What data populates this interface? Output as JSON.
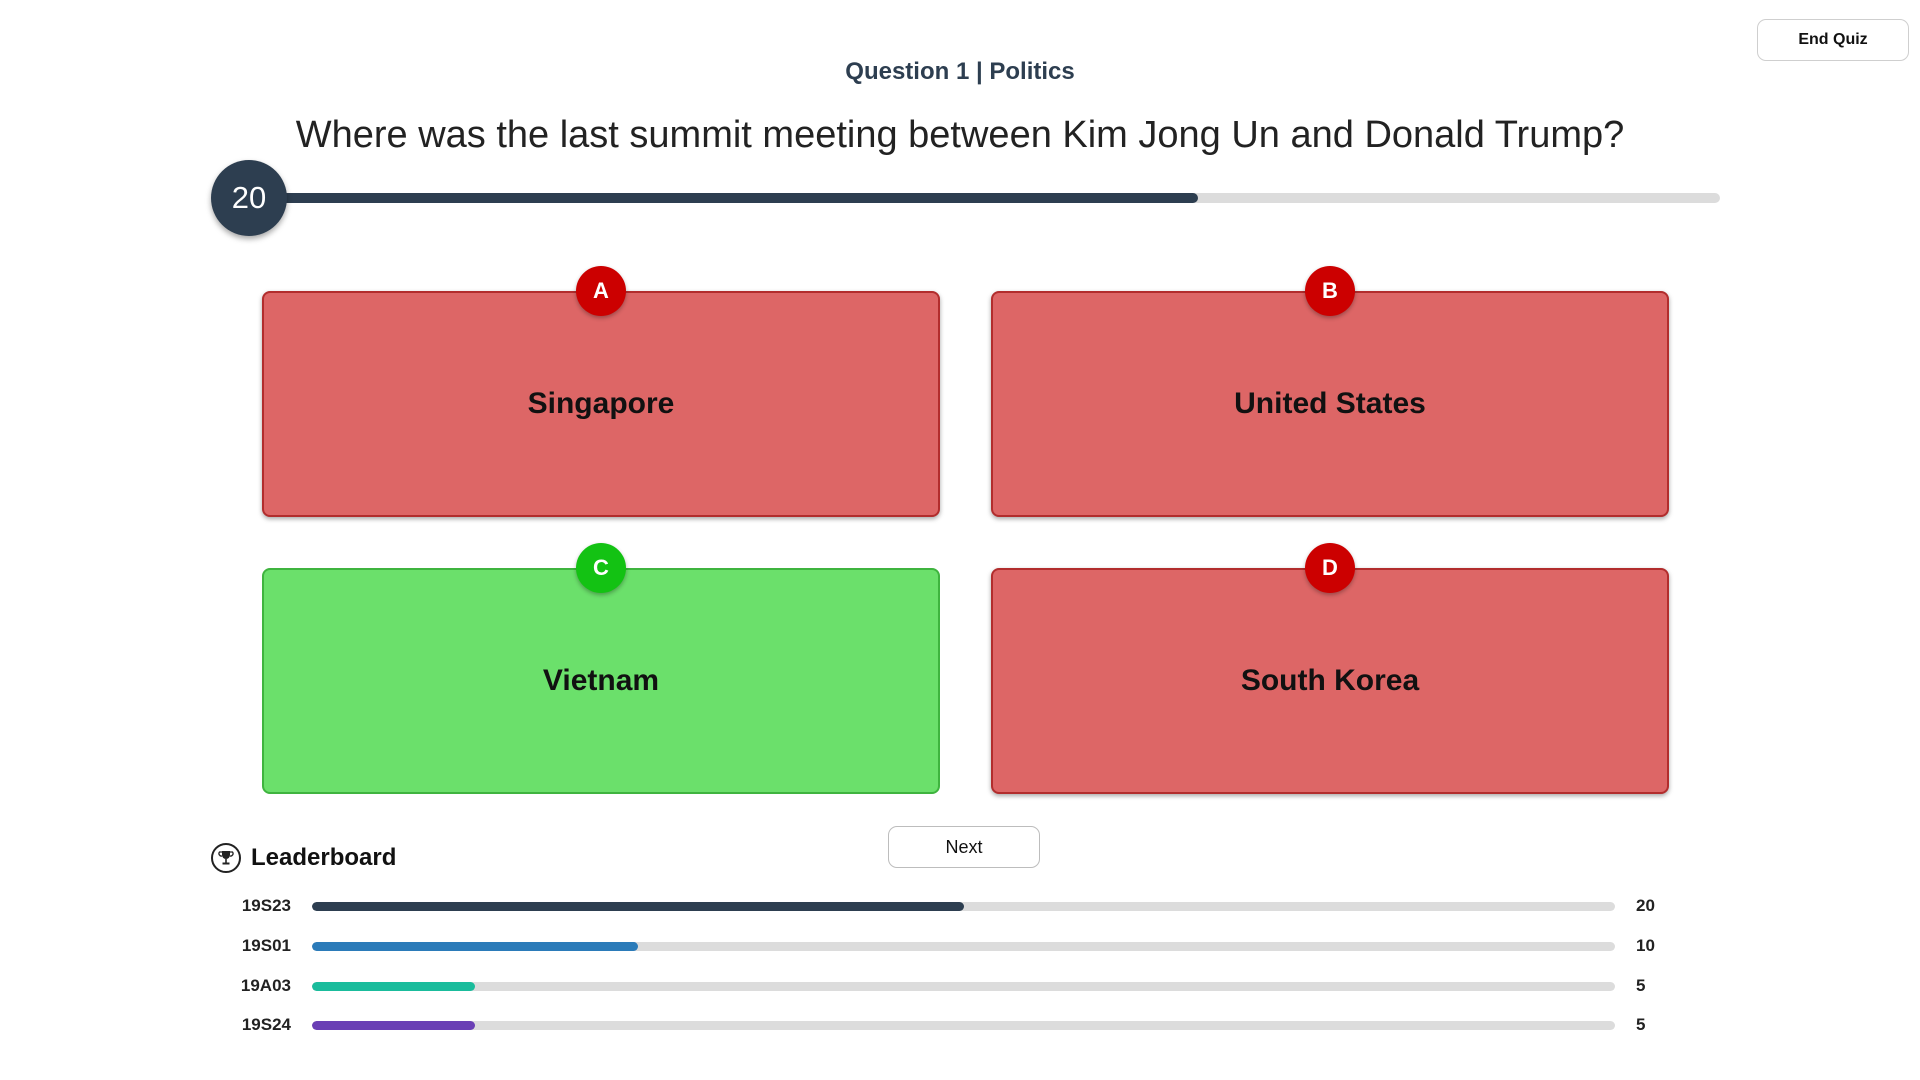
{
  "controls": {
    "end_quiz_label": "End Quiz",
    "next_label": "Next"
  },
  "question": {
    "header": "Question 1 | Politics",
    "text": "Where was the last summit meeting between Kim Jong Un and Donald Trump?"
  },
  "timer": {
    "seconds_left": "20",
    "fraction_remaining": 0.64,
    "color": "#2d3e50"
  },
  "answers": [
    {
      "letter": "A",
      "label": "Singapore",
      "correct": false
    },
    {
      "letter": "B",
      "label": "United States",
      "correct": false
    },
    {
      "letter": "C",
      "label": "Vietnam",
      "correct": true
    },
    {
      "letter": "D",
      "label": "South Korea",
      "correct": false
    }
  ],
  "leaderboard": {
    "title": "Leaderboard",
    "icon": "trophy-icon",
    "max_score": 40,
    "rows": [
      {
        "name": "19S23",
        "score": "20",
        "value": 20,
        "color": "#2d3e50"
      },
      {
        "name": "19S01",
        "score": "10",
        "value": 10,
        "color": "#2b7bb9"
      },
      {
        "name": "19A03",
        "score": "5",
        "value": 5,
        "color": "#1abc9c"
      },
      {
        "name": "19S24",
        "score": "5",
        "value": 5,
        "color": "#6a3fb5"
      }
    ]
  }
}
